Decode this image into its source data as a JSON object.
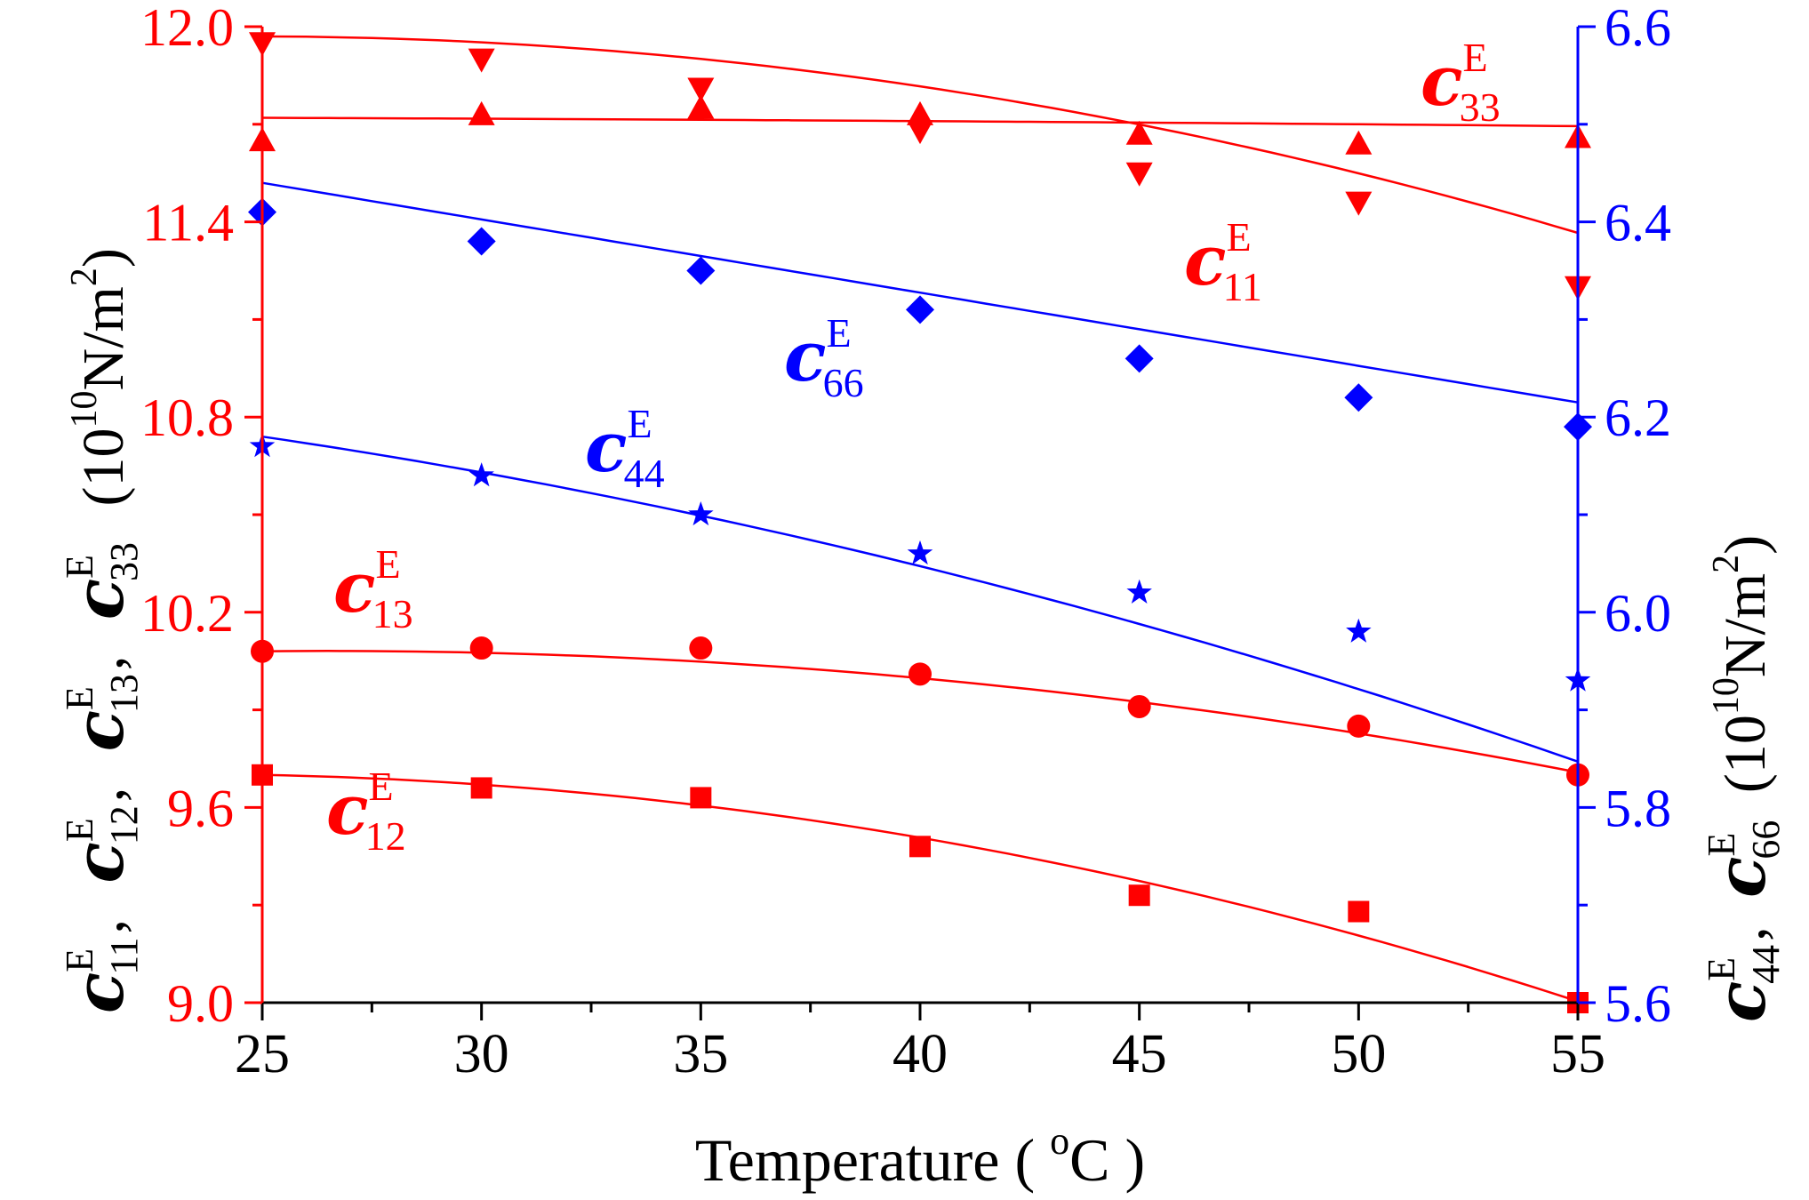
{
  "chart_data": {
    "type": "scatter",
    "x_axis": {
      "label_text": "Temperature ( ",
      "label_sup": "o",
      "label_tail": "C )",
      "range": [
        25,
        55
      ],
      "ticks": [
        "25",
        "30",
        "35",
        "40",
        "45",
        "50",
        "55"
      ]
    },
    "y_left": {
      "range": [
        9.0,
        12.0
      ],
      "ticks": [
        "9.0",
        "9.6",
        "10.2",
        "10.8",
        "11.4",
        "12.0"
      ],
      "color": "#ff0000",
      "label": {
        "symbol": "c",
        "sup": "E",
        "subs": [
          "11",
          "12",
          "13",
          "33"
        ],
        "unit_open": "(10",
        "unit_exp": "10",
        "unit_mid": "N/m",
        "unit_exp2": "2",
        "unit_close": ")",
        "comma": ","
      }
    },
    "y_right": {
      "range": [
        5.6,
        6.6
      ],
      "ticks": [
        "5.6",
        "5.8",
        "6.0",
        "6.2",
        "6.4",
        "6.6"
      ],
      "color": "#0000ff",
      "label": {
        "symbol": "c",
        "sup": "E",
        "subs": [
          "44",
          "66"
        ],
        "unit_open": "(10",
        "unit_exp": "10",
        "unit_mid": "N/m",
        "unit_exp2": "2",
        "unit_close": ")",
        "comma": ","
      }
    },
    "grid": false,
    "series": [
      {
        "id": "c11",
        "symbol": "c",
        "sup": "E",
        "sub": "11",
        "axis": "left",
        "color": "#ff0000",
        "marker": "triangle-down",
        "x": [
          25,
          30,
          35,
          40,
          45,
          50,
          55
        ],
        "y": [
          11.95,
          11.9,
          11.81,
          11.68,
          11.55,
          11.46,
          11.2
        ]
      },
      {
        "id": "c33",
        "symbol": "c",
        "sup": "E",
        "sub": "33",
        "axis": "left",
        "color": "#ff0000",
        "marker": "triangle-up",
        "x": [
          25,
          30,
          35,
          40,
          45,
          50,
          55
        ],
        "y": [
          11.65,
          11.73,
          11.75,
          11.73,
          11.67,
          11.64,
          11.66
        ]
      },
      {
        "id": "c66",
        "symbol": "c",
        "sup": "E",
        "sub": "66",
        "axis": "right",
        "color": "#0000ff",
        "marker": "diamond",
        "x": [
          25,
          30,
          35,
          40,
          45,
          50,
          55
        ],
        "y": [
          6.41,
          6.38,
          6.35,
          6.31,
          6.26,
          6.22,
          6.19
        ]
      },
      {
        "id": "c44",
        "symbol": "c",
        "sup": "E",
        "sub": "44",
        "axis": "right",
        "color": "#0000ff",
        "marker": "star",
        "x": [
          25,
          30,
          35,
          40,
          45,
          50,
          55
        ],
        "y": [
          6.17,
          6.14,
          6.1,
          6.06,
          6.02,
          5.98,
          5.93
        ]
      },
      {
        "id": "c13",
        "symbol": "c",
        "sup": "E",
        "sub": "13",
        "axis": "left",
        "color": "#ff0000",
        "marker": "circle",
        "x": [
          25,
          30,
          35,
          40,
          45,
          50,
          55
        ],
        "y": [
          10.08,
          10.09,
          10.09,
          10.01,
          9.91,
          9.85,
          9.7
        ]
      },
      {
        "id": "c12",
        "symbol": "c",
        "sup": "E",
        "sub": "12",
        "axis": "left",
        "color": "#ff0000",
        "marker": "square",
        "x": [
          25,
          30,
          35,
          40,
          45,
          50,
          55
        ],
        "y": [
          9.7,
          9.66,
          9.63,
          9.48,
          9.33,
          9.28,
          9.0
        ]
      }
    ],
    "fit_curves": [
      {
        "id": "c11",
        "axis": "left",
        "color": "#ff0000",
        "coef": [
          11.97,
          -0.00033,
          -0.00066
        ]
      },
      {
        "id": "c33",
        "axis": "left",
        "color": "#ff0000",
        "coef": [
          11.72,
          -0.0005,
          -1.2e-05
        ]
      },
      {
        "id": "c66",
        "axis": "right",
        "color": "#0000ff",
        "coef": [
          6.44,
          -0.0075,
          0
        ]
      },
      {
        "id": "c44",
        "axis": "right",
        "color": "#0000ff",
        "coef": [
          6.18,
          -0.0066,
          -0.00015
        ]
      },
      {
        "id": "c13",
        "axis": "left",
        "color": "#ff0000",
        "coef": [
          10.08,
          0.0014,
          -0.00046
        ]
      },
      {
        "id": "c12",
        "axis": "left",
        "color": "#ff0000",
        "coef": [
          9.7,
          -0.0025,
          -0.00069
        ]
      }
    ]
  }
}
